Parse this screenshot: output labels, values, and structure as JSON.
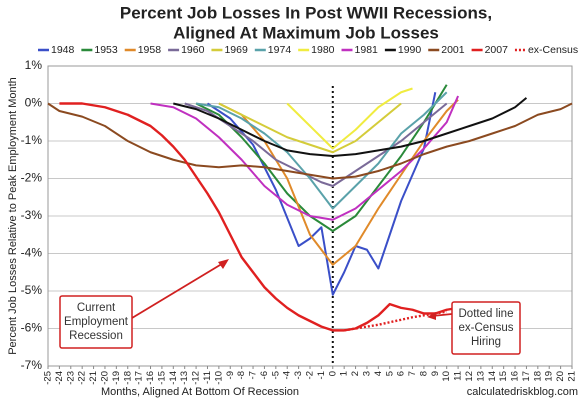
{
  "chart_data": {
    "type": "line",
    "title": [
      "Percent Job Losses In Post WWII Recessions,",
      "Aligned At Maximum Job Losses"
    ],
    "y_label": "Percent Job Losses Relative to Peak Employment Month",
    "x_label": "Months, Aligned At Bottom Of Recession",
    "source": "calculatedriskblog.com",
    "xlim": [
      -25,
      21
    ],
    "xticks": [
      -25,
      -24,
      -23,
      -22,
      -21,
      -20,
      -19,
      -18,
      -17,
      -16,
      -15,
      -14,
      -13,
      -12,
      -11,
      -10,
      -9,
      -8,
      -7,
      -6,
      -5,
      -4,
      -3,
      -2,
      -1,
      0,
      1,
      2,
      3,
      4,
      5,
      6,
      7,
      8,
      9,
      10,
      11,
      12,
      13,
      14,
      15,
      16,
      17,
      18,
      19,
      20,
      21
    ],
    "ylim": [
      -7,
      1
    ],
    "yticks": [
      {
        "value": -7,
        "label": "-7%"
      },
      {
        "value": -6,
        "label": "-6%"
      },
      {
        "value": -5,
        "label": "-5%"
      },
      {
        "value": -4,
        "label": "-4%"
      },
      {
        "value": -3,
        "label": "-3%"
      },
      {
        "value": -2,
        "label": "-2%"
      },
      {
        "value": -1,
        "label": "-1%"
      },
      {
        "value": 0,
        "label": "0%"
      },
      {
        "value": 1,
        "label": "1%"
      }
    ],
    "grid": true,
    "series": [
      {
        "name": "1948",
        "color": "#3a4fc8",
        "x": [
          -11,
          -9,
          -7,
          -5,
          -3,
          -2,
          -1,
          0,
          1,
          2,
          3,
          4,
          5,
          6,
          8,
          9
        ],
        "values": [
          0,
          -0.4,
          -1.1,
          -2.3,
          -3.8,
          -3.6,
          -3.3,
          -5.1,
          -4.5,
          -3.8,
          -3.9,
          -4.4,
          -3.5,
          -2.6,
          -1.2,
          0.3
        ]
      },
      {
        "name": "1953",
        "color": "#2a8a3a",
        "x": [
          -12,
          -10,
          -8,
          -6,
          -4,
          -2,
          0,
          2,
          4,
          6,
          8,
          10
        ],
        "values": [
          0,
          -0.3,
          -0.9,
          -1.6,
          -2.4,
          -3.0,
          -3.4,
          -3.0,
          -2.2,
          -1.4,
          -0.5,
          0.5
        ]
      },
      {
        "name": "1958",
        "color": "#e08a2a",
        "x": [
          -10,
          -8,
          -6,
          -4,
          -2,
          0,
          2,
          4,
          6,
          8,
          10,
          11
        ],
        "values": [
          0,
          -0.3,
          -1.0,
          -2.0,
          -3.5,
          -4.3,
          -3.8,
          -2.8,
          -1.9,
          -1.0,
          -0.2,
          0.1
        ]
      },
      {
        "name": "1960",
        "color": "#7a6a98",
        "x": [
          -13,
          -11,
          -9,
          -7,
          -5,
          -3,
          -1,
          0,
          2,
          4,
          6,
          8,
          10
        ],
        "values": [
          0,
          -0.2,
          -0.6,
          -1.0,
          -1.5,
          -1.8,
          -2.1,
          -2.2,
          -1.8,
          -1.4,
          -1.0,
          -0.5,
          0
        ]
      },
      {
        "name": "1969",
        "color": "#d4cc3a",
        "x": [
          -10,
          -8,
          -6,
          -4,
          -2,
          0,
          2,
          4,
          6
        ],
        "values": [
          0,
          -0.3,
          -0.6,
          -0.9,
          -1.1,
          -1.3,
          -1.0,
          -0.5,
          0
        ]
      },
      {
        "name": "1974",
        "color": "#5aa2aa",
        "x": [
          -12,
          -10,
          -8,
          -6,
          -4,
          -2,
          0,
          2,
          4,
          6,
          8,
          10
        ],
        "values": [
          0,
          -0.1,
          -0.4,
          -0.8,
          -1.3,
          -2.0,
          -2.8,
          -2.2,
          -1.6,
          -0.8,
          -0.3,
          0.3
        ]
      },
      {
        "name": "1980",
        "color": "#f0ec40",
        "x": [
          -4,
          -2,
          0,
          2,
          4,
          6,
          7
        ],
        "values": [
          0,
          -0.6,
          -1.2,
          -0.7,
          -0.1,
          0.3,
          0.4
        ]
      },
      {
        "name": "1981",
        "color": "#c030c0",
        "x": [
          -16,
          -14,
          -12,
          -10,
          -8,
          -6,
          -4,
          -2,
          0,
          2,
          4,
          6,
          8,
          10,
          11
        ],
        "values": [
          0,
          -0.1,
          -0.4,
          -0.9,
          -1.5,
          -2.2,
          -2.7,
          -3.0,
          -3.1,
          -2.8,
          -2.3,
          -1.8,
          -1.2,
          -0.5,
          0.2
        ]
      },
      {
        "name": "1990",
        "color": "#111111",
        "x": [
          -14,
          -12,
          -10,
          -8,
          -6,
          -4,
          -2,
          0,
          2,
          4,
          6,
          8,
          10,
          12,
          14,
          16,
          17
        ],
        "values": [
          0,
          -0.15,
          -0.4,
          -0.7,
          -1.0,
          -1.25,
          -1.35,
          -1.4,
          -1.35,
          -1.25,
          -1.15,
          -1.0,
          -0.8,
          -0.6,
          -0.4,
          -0.1,
          0.15
        ]
      },
      {
        "name": "2001",
        "color": "#8b4a20",
        "x": [
          -25,
          -24,
          -22,
          -20,
          -18,
          -16,
          -14,
          -12,
          -10,
          -8,
          -6,
          -4,
          -2,
          0,
          2,
          4,
          6,
          8,
          10,
          12,
          14,
          16,
          18,
          20,
          21
        ],
        "values": [
          0,
          -0.2,
          -0.35,
          -0.6,
          -1.0,
          -1.3,
          -1.5,
          -1.65,
          -1.7,
          -1.65,
          -1.7,
          -1.8,
          -1.9,
          -2.0,
          -1.95,
          -1.8,
          -1.6,
          -1.35,
          -1.15,
          -1.0,
          -0.8,
          -0.6,
          -0.3,
          -0.15,
          0
        ]
      },
      {
        "name": "2007",
        "color": "#e02020",
        "x": [
          -24,
          -23,
          -22,
          -21,
          -20,
          -19,
          -18,
          -17,
          -16,
          -15,
          -14,
          -13,
          -12,
          -11,
          -10,
          -9,
          -8,
          -7,
          -6,
          -5,
          -4,
          -3,
          -2,
          -1,
          0,
          1,
          2,
          3,
          4,
          5,
          6,
          7,
          8,
          9,
          10,
          11
        ],
        "values": [
          0,
          0,
          0,
          -0.05,
          -0.1,
          -0.2,
          -0.3,
          -0.45,
          -0.6,
          -0.85,
          -1.15,
          -1.5,
          -1.95,
          -2.4,
          -2.9,
          -3.5,
          -4.1,
          -4.5,
          -4.9,
          -5.2,
          -5.45,
          -5.65,
          -5.8,
          -5.95,
          -6.05,
          -6.05,
          -6.0,
          -5.85,
          -5.65,
          -5.35,
          -5.45,
          -5.5,
          -5.6,
          -5.6,
          -5.5,
          -5.45
        ]
      },
      {
        "name": "ex-Census",
        "color": "#e02020",
        "dashed": true,
        "x": [
          1,
          4,
          7,
          10
        ],
        "values": [
          -6.05,
          -5.9,
          -5.7,
          -5.55
        ]
      }
    ],
    "annotations": [
      {
        "lines": [
          "Current",
          "Employment",
          "Recession"
        ]
      },
      {
        "lines": [
          "Dotted line",
          "ex-Census",
          "Hiring"
        ]
      }
    ]
  }
}
